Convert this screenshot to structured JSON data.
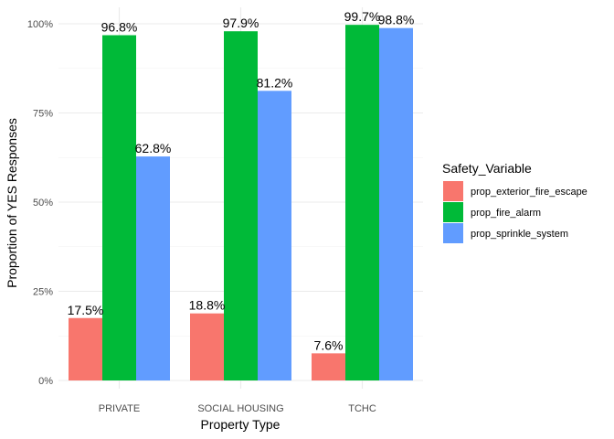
{
  "chart_data": {
    "type": "bar",
    "categories": [
      "PRIVATE",
      "SOCIAL HOUSING",
      "TCHC"
    ],
    "series": [
      {
        "name": "prop_exterior_fire_escape",
        "color": "#F8766D",
        "values": [
          0.175,
          0.188,
          0.076
        ],
        "labels": [
          "17.5%",
          "18.8%",
          "7.6%"
        ]
      },
      {
        "name": "prop_fire_alarm",
        "color": "#00BA38",
        "values": [
          0.968,
          0.979,
          0.997
        ],
        "labels": [
          "96.8%",
          "97.9%",
          "99.7%"
        ]
      },
      {
        "name": "prop_sprinkle_system",
        "color": "#619CFF",
        "values": [
          0.628,
          0.812,
          0.988
        ],
        "labels": [
          "62.8%",
          "81.2%",
          "98.8%"
        ]
      }
    ],
    "xlabel": "Property Type",
    "ylabel": "Proportion of YES Responses",
    "ylim": [
      0,
      1
    ],
    "yticks": [
      0,
      0.25,
      0.5,
      0.75,
      1.0
    ],
    "ytick_labels": [
      "0%",
      "25%",
      "50%",
      "75%",
      "100%"
    ],
    "legend_title": "Safety_Variable",
    "legend_position": "right",
    "grid": true
  }
}
